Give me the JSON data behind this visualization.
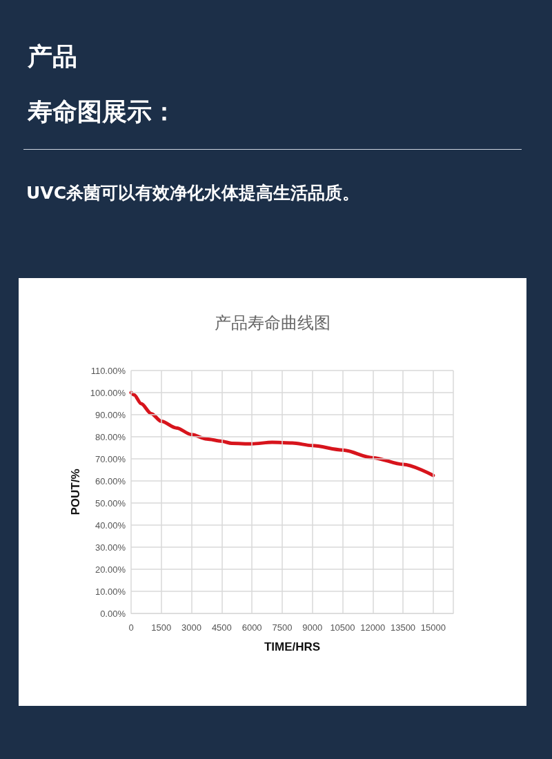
{
  "chart_data": {
    "type": "line",
    "title": "产品寿命曲线图",
    "xlabel": "TIME/HRS",
    "ylabel": "POUT/%",
    "annotations": [
      "产品",
      "寿命图展示：",
      "UVC杀菌可以有效净化水体提高生活品质。"
    ],
    "x": [
      0,
      150,
      500,
      1000,
      1500,
      2250,
      3000,
      3750,
      4500,
      5000,
      6000,
      7000,
      8000,
      9000,
      10500,
      12000,
      13500,
      15000
    ],
    "series": [
      {
        "color": "#d7141c",
        "values": [
          100,
          99,
          95,
          90.5,
          87,
          84,
          81,
          79,
          78,
          77,
          76.8,
          77.5,
          77.2,
          76,
          74,
          70.5,
          67.5,
          62.5
        ]
      }
    ],
    "xlim": [
      0,
      16000
    ],
    "xticks": [
      0,
      1500,
      3000,
      4500,
      6000,
      7500,
      9000,
      10500,
      12000,
      13500,
      15000
    ],
    "ylim": [
      0,
      110
    ],
    "yticks": [
      {
        "value": 0,
        "label": "0.00%"
      },
      {
        "value": 10,
        "label": "10.00%"
      },
      {
        "value": 20,
        "label": "20.00%"
      },
      {
        "value": 30,
        "label": "30.00%"
      },
      {
        "value": 40,
        "label": "40.00%"
      },
      {
        "value": 50,
        "label": "50.00%"
      },
      {
        "value": 60,
        "label": "60.00%"
      },
      {
        "value": 70,
        "label": "70.00%"
      },
      {
        "value": 80,
        "label": "80.00%"
      },
      {
        "value": 90,
        "label": "90.00%"
      },
      {
        "value": 100,
        "label": "100.00%"
      },
      {
        "value": 110,
        "label": "110.00%"
      }
    ],
    "grid": true,
    "marker": "none",
    "line_style": "solid"
  }
}
